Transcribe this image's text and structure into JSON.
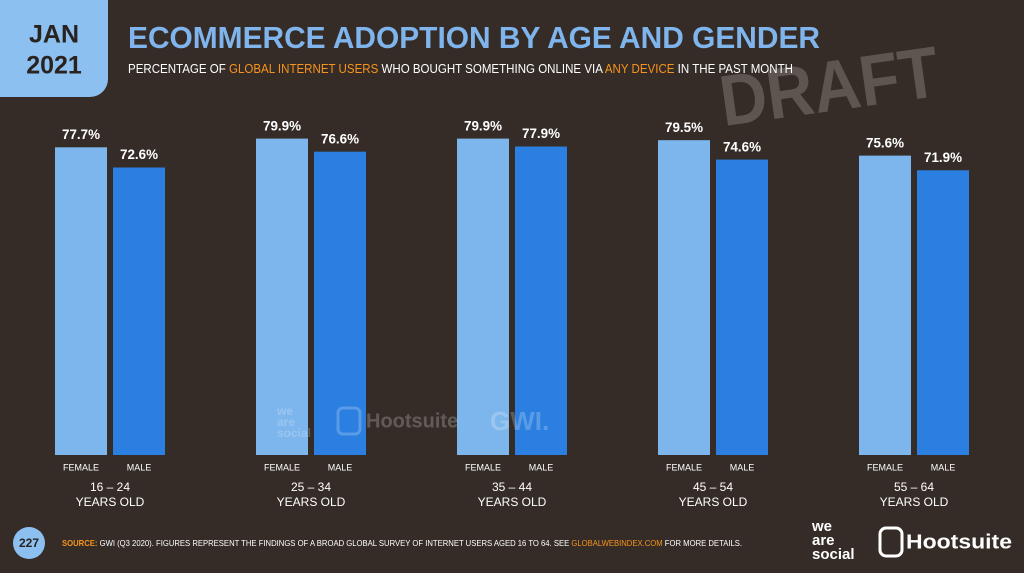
{
  "header": {
    "month": "JAN",
    "year": "2021"
  },
  "chart_data": {
    "type": "bar",
    "title": "ECOMMERCE ADOPTION BY AGE AND GENDER",
    "subtitle": [
      "PERCENTAGE OF ",
      "GLOBAL INTERNET USERS",
      " WHO BOUGHT SOMETHING ONLINE VIA ",
      "ANY DEVICE",
      " IN THE PAST MONTH"
    ],
    "categories": [
      "16 – 24",
      "25 – 34",
      "35 – 44",
      "45 – 54",
      "55 – 64"
    ],
    "category_suffix": "YEARS OLD",
    "series": [
      {
        "name": "FEMALE",
        "color": "#7db6ec",
        "values": [
          77.7,
          79.9,
          79.9,
          79.5,
          75.6
        ],
        "value_labels": [
          "77.7%",
          "79.9%",
          "79.9%",
          "79.5%",
          "75.6%"
        ]
      },
      {
        "name": "MALE",
        "color": "#2a7fe0",
        "values": [
          72.6,
          76.6,
          77.9,
          74.6,
          71.9
        ],
        "value_labels": [
          "72.6%",
          "76.6%",
          "77.9%",
          "74.6%",
          "71.9%"
        ]
      }
    ]
  },
  "watermark": {
    "draft": "DRAFT",
    "logos": [
      "we",
      "are",
      "social",
      "Hootsuite",
      "GWI."
    ]
  },
  "footer": {
    "page": "227",
    "source_label": "SOURCE:",
    "source_text": " GWI (Q3 2020). FIGURES REPRESENT THE FINDINGS OF A BROAD GLOBAL SURVEY OF INTERNET USERS AGED 16 TO 64. SEE ",
    "source_link": "GLOBALWEBINDEX.COM",
    "source_end": " FOR MORE DETAILS.",
    "logo_we": [
      "we",
      "are",
      "social"
    ],
    "logo_hootsuite": "Hootsuite"
  }
}
